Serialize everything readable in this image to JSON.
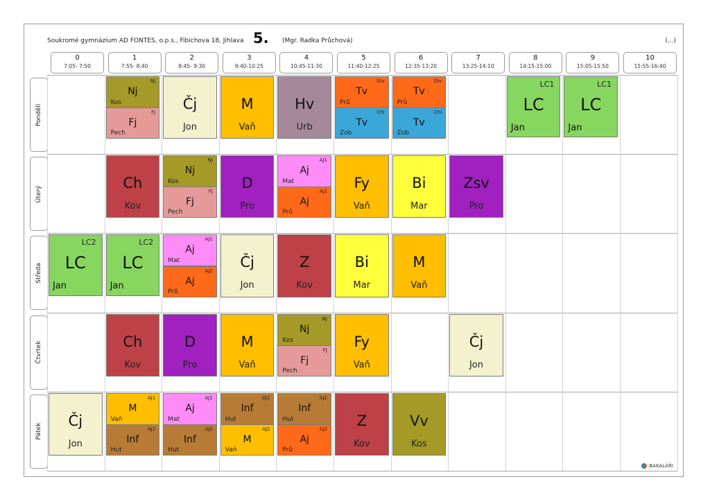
{
  "header": {
    "school": "Soukromé gymnázium AD FONTES, o.p.s., Fibichova 18, Jihlava",
    "class_name": "5.",
    "teacher": "(Mgr. Radka Průchová)",
    "more": "(...)"
  },
  "periods": [
    {
      "num": "0",
      "time": "7:05- 7:50"
    },
    {
      "num": "1",
      "time": "7:55- 8:40"
    },
    {
      "num": "2",
      "time": "8:45- 9:30"
    },
    {
      "num": "3",
      "time": "9:40-10:25"
    },
    {
      "num": "4",
      "time": "10:45-11:30"
    },
    {
      "num": "5",
      "time": "11:40-12:25"
    },
    {
      "num": "6",
      "time": "12:35-13:20"
    },
    {
      "num": "7",
      "time": "13:25-14:10"
    },
    {
      "num": "8",
      "time": "14:15-15:00"
    },
    {
      "num": "9",
      "time": "15:05-15:50"
    },
    {
      "num": "10",
      "time": "15:55-16:40"
    }
  ],
  "days": [
    "Pondělí",
    "Úterý",
    "Středa",
    "Čtvrtek",
    "Pátek"
  ],
  "colors": {
    "olive": "#a59a27",
    "pink": "#e59a99",
    "cream": "#f4f1cf",
    "orange": "#ffbf00",
    "mauve": "#a6889b",
    "red_orange": "#ff6a1a",
    "blue": "#3aa7d8",
    "green": "#86d65f",
    "crimson": "#bd4146",
    "purple": "#a020c0",
    "magenta": "#ff8cf6",
    "yellow": "#ffff3c",
    "brown": "#b87b36"
  },
  "lessons": [
    {
      "day": 0,
      "period": 1,
      "part": "top",
      "subject": "Nj",
      "teacher": "Kos",
      "group": "NJ",
      "color": "#a59a27"
    },
    {
      "day": 0,
      "period": 1,
      "part": "bottom",
      "subject": "Fj",
      "teacher": "Pech",
      "group": "FJ",
      "color": "#e59a99"
    },
    {
      "day": 0,
      "period": 2,
      "part": "full",
      "subject": "Čj",
      "teacher": "Jon",
      "color": "#f4f1cf"
    },
    {
      "day": 0,
      "period": 3,
      "part": "full",
      "subject": "M",
      "teacher": "Vaň",
      "color": "#ffbf00"
    },
    {
      "day": 0,
      "period": 4,
      "part": "full",
      "subject": "Hv",
      "teacher": "Urb",
      "color": "#a6889b"
    },
    {
      "day": 0,
      "period": 5,
      "part": "top",
      "subject": "Tv",
      "teacher": "Prů",
      "group": "Dív",
      "color": "#ff6a1a"
    },
    {
      "day": 0,
      "period": 5,
      "part": "bottom",
      "subject": "Tv",
      "teacher": "Zob",
      "group": "Chl",
      "color": "#3aa7d8"
    },
    {
      "day": 0,
      "period": 6,
      "part": "top",
      "subject": "Tv",
      "teacher": "Prů",
      "group": "Dív",
      "color": "#ff6a1a"
    },
    {
      "day": 0,
      "period": 6,
      "part": "bottom",
      "subject": "Tv",
      "teacher": "Zob",
      "group": "Chl",
      "color": "#3aa7d8"
    },
    {
      "day": 0,
      "period": 8,
      "part": "lc",
      "subject": "LC",
      "teacher": "Jan",
      "group": "LC1",
      "color": "#86d65f"
    },
    {
      "day": 0,
      "period": 9,
      "part": "lc",
      "subject": "LC",
      "teacher": "Jan",
      "group": "LC1",
      "color": "#86d65f"
    },
    {
      "day": 1,
      "period": 1,
      "part": "full",
      "subject": "Ch",
      "teacher": "Kov",
      "color": "#bd4146"
    },
    {
      "day": 1,
      "period": 2,
      "part": "top",
      "subject": "Nj",
      "teacher": "Kos",
      "group": "NJ",
      "color": "#a59a27"
    },
    {
      "day": 1,
      "period": 2,
      "part": "bottom",
      "subject": "Fj",
      "teacher": "Pech",
      "group": "FJ",
      "color": "#e59a99"
    },
    {
      "day": 1,
      "period": 3,
      "part": "full",
      "subject": "D",
      "teacher": "Pro",
      "color": "#a020c0"
    },
    {
      "day": 1,
      "period": 4,
      "part": "top",
      "subject": "Aj",
      "teacher": "Mat",
      "group": "AJ1",
      "color": "#ff8cf6"
    },
    {
      "day": 1,
      "period": 4,
      "part": "bottom",
      "subject": "Aj",
      "teacher": "Prů",
      "group": "AJ2",
      "color": "#ff6a1a"
    },
    {
      "day": 1,
      "period": 5,
      "part": "full",
      "subject": "Fy",
      "teacher": "Vaň",
      "color": "#ffbf00"
    },
    {
      "day": 1,
      "period": 6,
      "part": "full",
      "subject": "Bi",
      "teacher": "Mar",
      "color": "#ffff3c"
    },
    {
      "day": 1,
      "period": 7,
      "part": "full",
      "subject": "Zsv",
      "teacher": "Pro",
      "color": "#a020c0"
    },
    {
      "day": 2,
      "period": 0,
      "part": "lc",
      "subject": "LC",
      "teacher": "Jan",
      "group": "LC2",
      "color": "#86d65f"
    },
    {
      "day": 2,
      "period": 1,
      "part": "lc",
      "subject": "LC",
      "teacher": "Jan",
      "group": "LC2",
      "color": "#86d65f"
    },
    {
      "day": 2,
      "period": 2,
      "part": "top",
      "subject": "Aj",
      "teacher": "Mat",
      "group": "AJ1",
      "color": "#ff8cf6"
    },
    {
      "day": 2,
      "period": 2,
      "part": "bottom",
      "subject": "Aj",
      "teacher": "Prů",
      "group": "AJ2",
      "color": "#ff6a1a"
    },
    {
      "day": 2,
      "period": 3,
      "part": "full",
      "subject": "Čj",
      "teacher": "Jon",
      "color": "#f4f1cf"
    },
    {
      "day": 2,
      "period": 4,
      "part": "full",
      "subject": "Z",
      "teacher": "Kov",
      "color": "#bd4146"
    },
    {
      "day": 2,
      "period": 5,
      "part": "full",
      "subject": "Bi",
      "teacher": "Mar",
      "color": "#ffff3c"
    },
    {
      "day": 2,
      "period": 6,
      "part": "full",
      "subject": "M",
      "teacher": "Vaň",
      "color": "#ffbf00"
    },
    {
      "day": 3,
      "period": 1,
      "part": "full",
      "subject": "Ch",
      "teacher": "Kov",
      "color": "#bd4146"
    },
    {
      "day": 3,
      "period": 2,
      "part": "full",
      "subject": "D",
      "teacher": "Pro",
      "color": "#a020c0"
    },
    {
      "day": 3,
      "period": 3,
      "part": "full",
      "subject": "M",
      "teacher": "Vaň",
      "color": "#ffbf00"
    },
    {
      "day": 3,
      "period": 4,
      "part": "top",
      "subject": "Nj",
      "teacher": "Kos",
      "group": "NJ",
      "color": "#a59a27"
    },
    {
      "day": 3,
      "period": 4,
      "part": "bottom",
      "subject": "Fj",
      "teacher": "Pech",
      "group": "FJ",
      "color": "#e59a99"
    },
    {
      "day": 3,
      "period": 5,
      "part": "full",
      "subject": "Fy",
      "teacher": "Vaň",
      "color": "#ffbf00"
    },
    {
      "day": 3,
      "period": 7,
      "part": "full",
      "subject": "Čj",
      "teacher": "Jon",
      "color": "#f4f1cf"
    },
    {
      "day": 4,
      "period": 0,
      "part": "full",
      "subject": "Čj",
      "teacher": "Jon",
      "color": "#f4f1cf"
    },
    {
      "day": 4,
      "period": 1,
      "part": "top",
      "subject": "M",
      "teacher": "Vaň",
      "group": "AJ1",
      "color": "#ffbf00"
    },
    {
      "day": 4,
      "period": 1,
      "part": "bottom",
      "subject": "Inf",
      "teacher": "Hut",
      "group": "AJ2",
      "color": "#b87b36"
    },
    {
      "day": 4,
      "period": 2,
      "part": "top",
      "subject": "Aj",
      "teacher": "Mat",
      "group": "AJ1",
      "color": "#ff8cf6"
    },
    {
      "day": 4,
      "period": 2,
      "part": "bottom",
      "subject": "Inf",
      "teacher": "Hut",
      "group": "AJ2",
      "color": "#b87b36"
    },
    {
      "day": 4,
      "period": 3,
      "part": "top",
      "subject": "Inf",
      "teacher": "Hut",
      "group": "AJ1",
      "color": "#b87b36"
    },
    {
      "day": 4,
      "period": 3,
      "part": "bottom",
      "subject": "M",
      "teacher": "Vaň",
      "group": "AJ2",
      "color": "#ffbf00"
    },
    {
      "day": 4,
      "period": 4,
      "part": "top",
      "subject": "Inf",
      "teacher": "Hut",
      "group": "AJ1",
      "color": "#b87b36"
    },
    {
      "day": 4,
      "period": 4,
      "part": "bottom",
      "subject": "Aj",
      "teacher": "Prů",
      "group": "AJ2",
      "color": "#ff6a1a"
    },
    {
      "day": 4,
      "period": 5,
      "part": "full",
      "subject": "Z",
      "teacher": "Kov",
      "color": "#bd4146"
    },
    {
      "day": 4,
      "period": 6,
      "part": "full",
      "subject": "Vv",
      "teacher": "Kos",
      "color": "#a59a27"
    }
  ],
  "footer": {
    "brand": "BAKALÁŘI",
    "logo_icon": "bakalari-logo-icon"
  }
}
